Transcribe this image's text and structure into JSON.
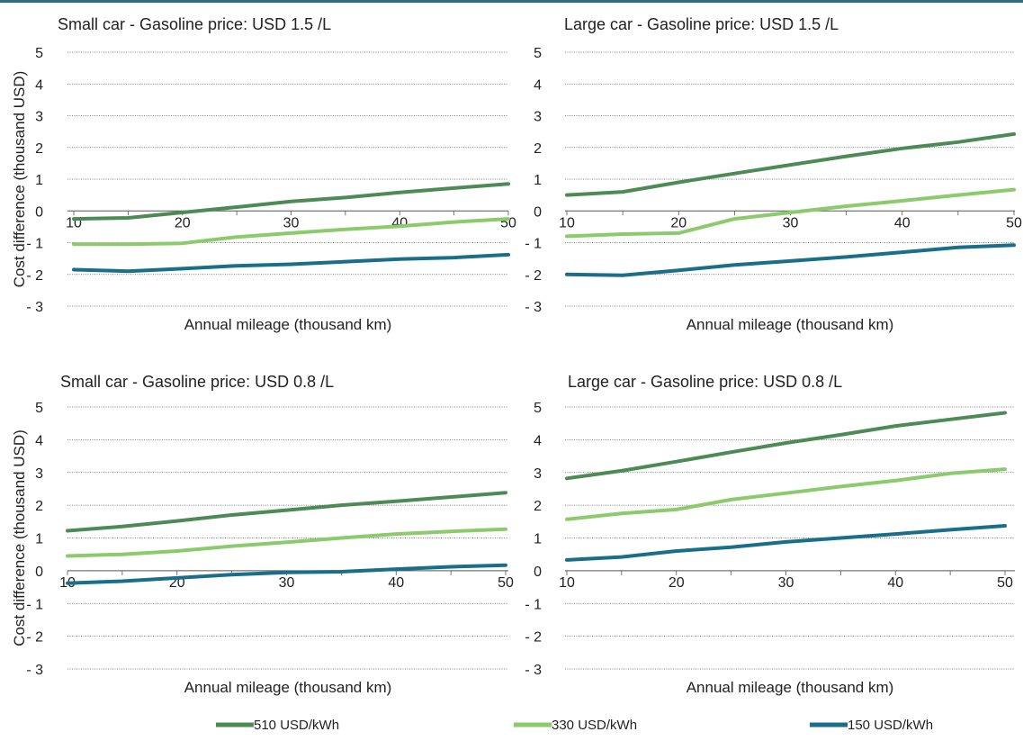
{
  "y_axis_title": "Cost difference (thousand USD)",
  "legend": [
    "510 USD/kWh",
    "330 USD/kWh",
    "150 USD/kWh"
  ],
  "colors": {
    "510 USD/kWh": "#4e8a55",
    "330 USD/kWh": "#8cca6d",
    "150 USD/kWh": "#1a6e8a"
  },
  "chart_data": [
    {
      "type": "line",
      "title": "Small car - Gasoline price: USD 1.5 /L",
      "xlabel": "Annual mileage (thousand km)",
      "ylabel": "Cost difference (thousand USD)",
      "x": [
        10,
        15,
        20,
        25,
        30,
        35,
        40,
        45,
        50
      ],
      "xticks": [
        10,
        20,
        30,
        40,
        50
      ],
      "yticks": [
        "- 3",
        "- 2",
        "- 1",
        "0",
        "1",
        "2",
        "3",
        "4",
        "5"
      ],
      "ylim": [
        -3,
        5
      ],
      "series": [
        {
          "name": "510 USD/kWh",
          "values": [
            -0.25,
            -0.22,
            -0.05,
            0.12,
            0.3,
            0.42,
            0.58,
            0.72,
            0.85
          ]
        },
        {
          "name": "330 USD/kWh",
          "values": [
            -1.05,
            -1.05,
            -1.02,
            -0.82,
            -0.7,
            -0.58,
            -0.48,
            -0.35,
            -0.25
          ]
        },
        {
          "name": "150 USD/kWh",
          "values": [
            -1.85,
            -1.9,
            -1.82,
            -1.73,
            -1.68,
            -1.6,
            -1.52,
            -1.47,
            -1.38
          ]
        }
      ]
    },
    {
      "type": "line",
      "title": "Large car - Gasoline price: USD 1.5 /L",
      "xlabel": "Annual mileage (thousand km)",
      "ylabel": "",
      "x": [
        10,
        15,
        20,
        25,
        30,
        35,
        40,
        45,
        50
      ],
      "xticks": [
        10,
        20,
        30,
        40,
        50
      ],
      "yticks": [
        "- 3",
        "- 2",
        "- 1",
        "0",
        "1",
        "2",
        "3",
        "4",
        "5"
      ],
      "ylim": [
        -3,
        5
      ],
      "series": [
        {
          "name": "510 USD/kWh",
          "values": [
            0.5,
            0.6,
            0.9,
            1.18,
            1.45,
            1.72,
            1.97,
            2.17,
            2.42
          ]
        },
        {
          "name": "330 USD/kWh",
          "values": [
            -0.8,
            -0.73,
            -0.7,
            -0.25,
            -0.05,
            0.15,
            0.32,
            0.5,
            0.67
          ]
        },
        {
          "name": "150 USD/kWh",
          "values": [
            -2.0,
            -2.03,
            -1.87,
            -1.7,
            -1.58,
            -1.45,
            -1.3,
            -1.15,
            -1.08
          ]
        }
      ]
    },
    {
      "type": "line",
      "title": "Small car - Gasoline price: USD 0.8 /L",
      "xlabel": "Annual mileage (thousand km)",
      "ylabel": "Cost difference (thousand USD)",
      "x": [
        10,
        15,
        20,
        25,
        30,
        35,
        40,
        45,
        50
      ],
      "xticks": [
        10,
        20,
        30,
        40,
        50
      ],
      "yticks": [
        "- 3",
        "- 2",
        "- 1",
        "0",
        "1",
        "2",
        "3",
        "4",
        "5"
      ],
      "ylim": [
        -3,
        5
      ],
      "series": [
        {
          "name": "510 USD/kWh",
          "values": [
            1.22,
            1.35,
            1.52,
            1.7,
            1.85,
            2.0,
            2.12,
            2.25,
            2.38
          ]
        },
        {
          "name": "330 USD/kWh",
          "values": [
            0.45,
            0.5,
            0.6,
            0.75,
            0.87,
            1.0,
            1.12,
            1.2,
            1.27
          ]
        },
        {
          "name": "150 USD/kWh",
          "values": [
            -0.38,
            -0.32,
            -0.22,
            -0.12,
            -0.05,
            -0.03,
            0.05,
            0.12,
            0.17
          ]
        }
      ]
    },
    {
      "type": "line",
      "title": "Large car - Gasoline price: USD 0.8 /L",
      "xlabel": "Annual mileage (thousand km)",
      "ylabel": "",
      "x": [
        10,
        15,
        20,
        25,
        30,
        35,
        40,
        45,
        50
      ],
      "xticks": [
        10,
        20,
        30,
        40,
        50
      ],
      "yticks": [
        "- 3",
        "- 2",
        "- 1",
        "0",
        "1",
        "2",
        "3",
        "4",
        "5"
      ],
      "ylim": [
        -3,
        5
      ],
      "series": [
        {
          "name": "510 USD/kWh",
          "values": [
            2.82,
            3.05,
            3.33,
            3.62,
            3.9,
            4.15,
            4.42,
            4.62,
            4.82
          ]
        },
        {
          "name": "330 USD/kWh",
          "values": [
            1.57,
            1.75,
            1.87,
            2.17,
            2.37,
            2.57,
            2.75,
            2.97,
            3.1
          ]
        },
        {
          "name": "150 USD/kWh",
          "values": [
            0.33,
            0.42,
            0.6,
            0.72,
            0.88,
            1.0,
            1.12,
            1.25,
            1.37
          ]
        }
      ]
    }
  ]
}
